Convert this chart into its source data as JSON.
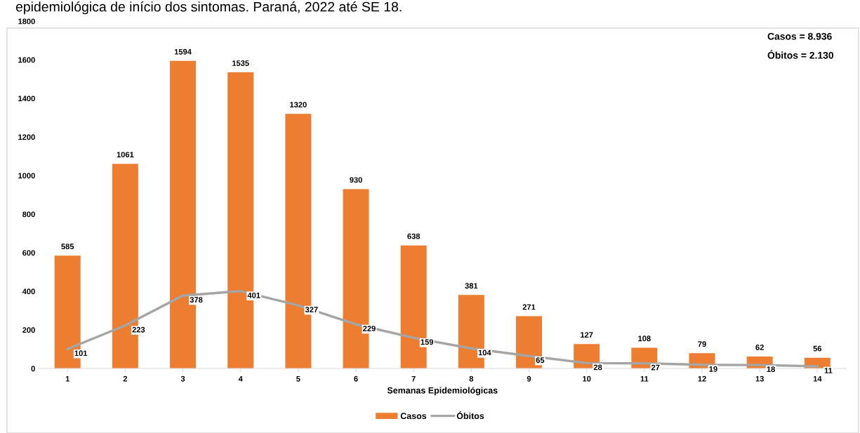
{
  "chart_data": {
    "type": "bar",
    "title": "epidemiológica de início dos sintomas. Paraná, 2022 até SE 18.",
    "xlabel": "Semanas Epidemiológicas",
    "categories": [
      "1",
      "2",
      "3",
      "4",
      "5",
      "6",
      "7",
      "8",
      "9",
      "10",
      "11",
      "12",
      "13",
      "14"
    ],
    "series": [
      {
        "name": "Casos",
        "color": "#ed7d31",
        "values": [
          585,
          1061,
          1594,
          1535,
          1320,
          930,
          638,
          381,
          271,
          127,
          108,
          79,
          62,
          56
        ]
      },
      {
        "name": "Óbitos",
        "type": "line",
        "color": "#a5a5a5",
        "values": [
          101,
          223,
          378,
          401,
          327,
          229,
          159,
          104,
          65,
          28,
          27,
          19,
          18,
          11
        ]
      }
    ],
    "ylim": [
      0,
      1800
    ],
    "yticks": [
      0,
      200,
      400,
      600,
      800,
      1000,
      1200,
      1400,
      1600,
      1800
    ],
    "data_labels": true,
    "grid": false,
    "legend": "bottom",
    "annotations": [
      "Casos = 8.936",
      "Óbitos = 2.130"
    ]
  }
}
